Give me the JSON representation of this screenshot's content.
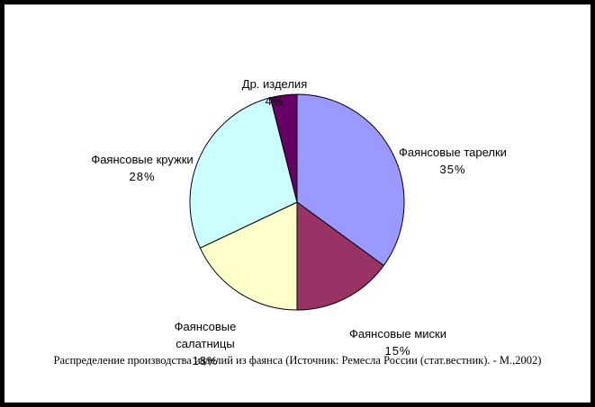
{
  "window": {
    "background": "#FFFFFF",
    "frame_color": "#000000"
  },
  "chart_data": {
    "type": "pie",
    "title": "",
    "caption": "Распределение производства изделий из фаянса (Источник: Ремесла России (стат.вестник). - М.,2002)",
    "unit": "%",
    "direction": "clockwise",
    "start_angle_deg": 0,
    "slice_border_color": "#000000",
    "legend": "none",
    "slices": [
      {
        "name": "Фаянсовые тарелки",
        "label_display": "Фаянсовые тарелки",
        "value": 35,
        "pct_label": "35%",
        "color": "#9999FF"
      },
      {
        "name": "Фаянсовые миски",
        "label_display": "Фаянсовые миски",
        "value": 15,
        "pct_label": "15%",
        "color": "#993366"
      },
      {
        "name": "Фаянсовые салатницы",
        "label_display": "Фаянсовые\nсалатницы",
        "value": 18,
        "pct_label": "18%",
        "color": "#FFFFCC"
      },
      {
        "name": "Фаянсовые кружки",
        "label_display": "Фаянсовые кружки",
        "value": 28,
        "pct_label": "28%",
        "color": "#CCFFFF"
      },
      {
        "name": "Др. изделия",
        "label_display": "Др. изделия",
        "value": 4,
        "pct_label": "4%",
        "color": "#660066"
      }
    ]
  }
}
